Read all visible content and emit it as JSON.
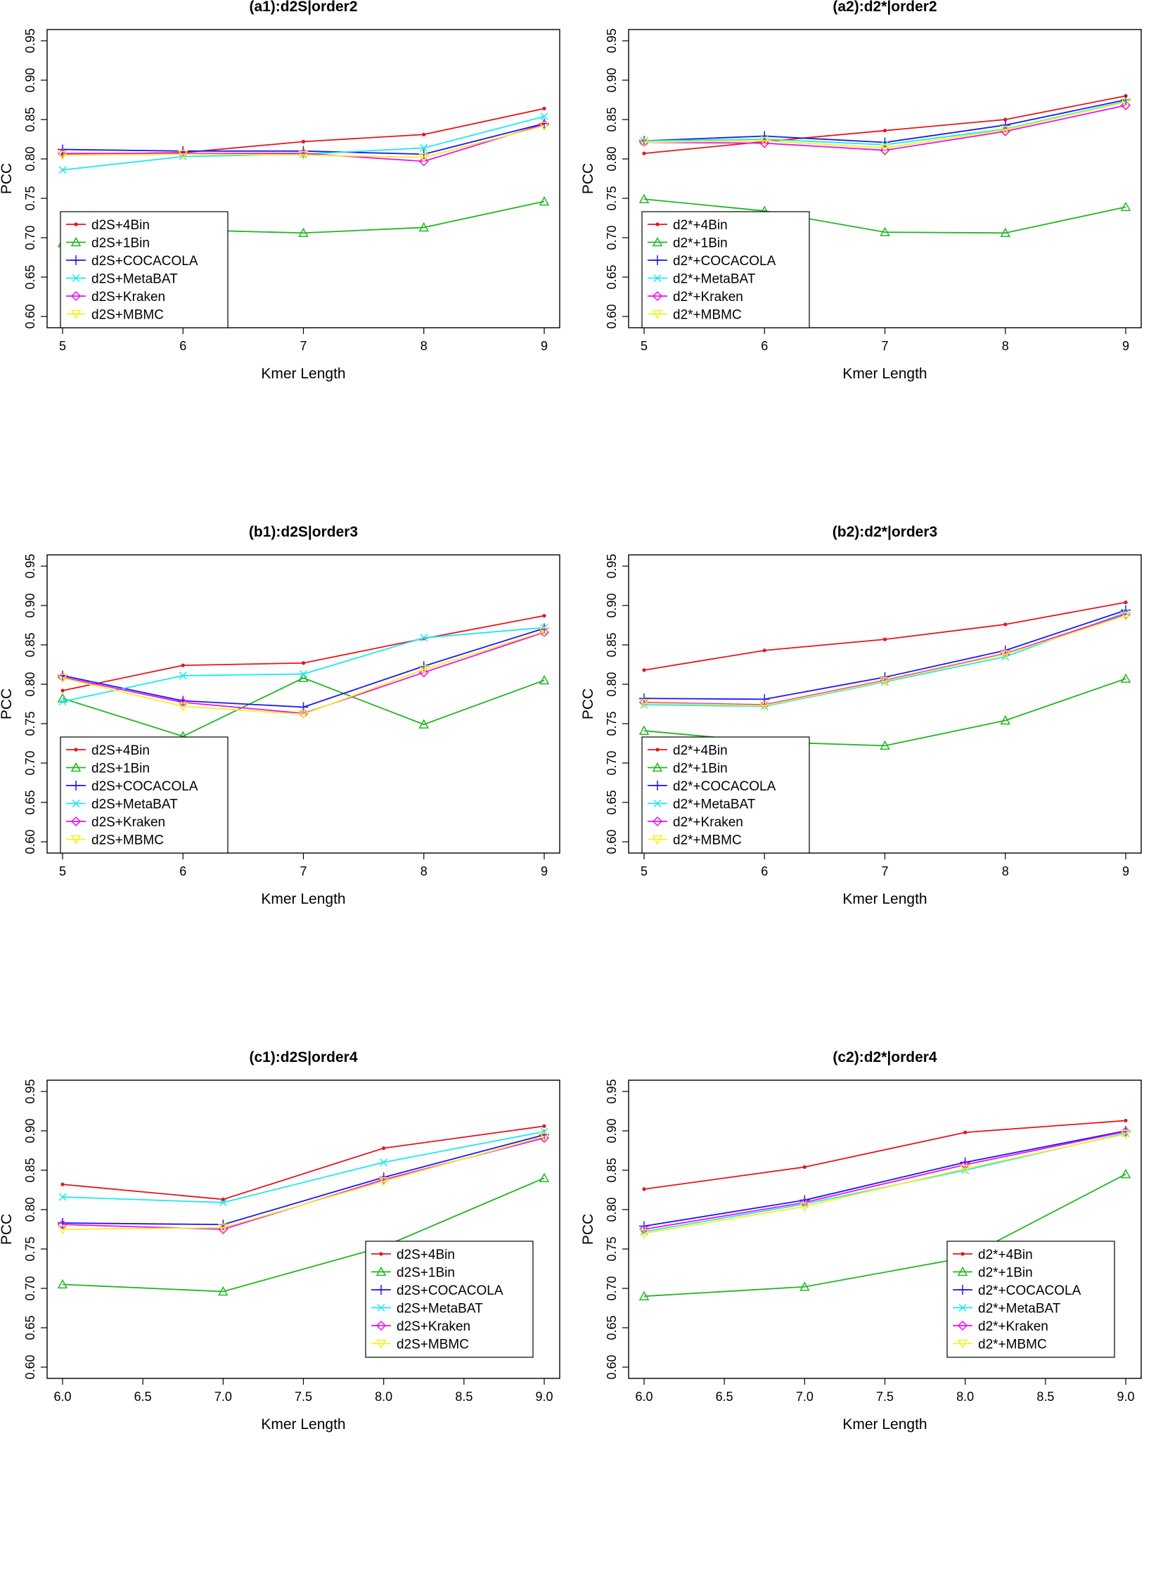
{
  "figure": {
    "colors": {
      "4Bin": "#e8141c",
      "1Bin": "#22b622",
      "COCACOLA": "#1a1aee",
      "MetaBAT": "#1fe8f0",
      "Kraken": "#ee10ee",
      "MBMC": "#f5f020"
    }
  },
  "chart_data": [
    {
      "type": "line",
      "title": "(a1):d2S|order2",
      "xlabel": "Kmer Length",
      "ylabel": "PCC",
      "x": [
        5,
        6,
        7,
        8,
        9
      ],
      "xticks": [
        "5",
        "6",
        "7",
        "8",
        "9"
      ],
      "xlim": [
        5,
        9
      ],
      "ylim": [
        0.6,
        0.95
      ],
      "yticks": [
        "0.60",
        "0.65",
        "0.70",
        "0.75",
        "0.80",
        "0.85",
        "0.90",
        "0.95"
      ],
      "legend_position": "bottom-left",
      "series": [
        {
          "name": "d2S+4Bin",
          "key": "4Bin",
          "values": [
            0.806,
            0.808,
            0.822,
            0.831,
            0.864
          ]
        },
        {
          "name": "d2S+1Bin",
          "key": "1Bin",
          "values": [
            0.693,
            0.71,
            0.706,
            0.713,
            0.746
          ]
        },
        {
          "name": "d2S+COCACOLA",
          "key": "COCACOLA",
          "values": [
            0.812,
            0.81,
            0.81,
            0.806,
            0.845
          ]
        },
        {
          "name": "d2S+MetaBAT",
          "key": "MetaBAT",
          "values": [
            0.786,
            0.803,
            0.806,
            0.814,
            0.854
          ]
        },
        {
          "name": "d2S+Kraken",
          "key": "Kraken",
          "values": [
            0.807,
            0.807,
            0.807,
            0.797,
            0.844
          ]
        },
        {
          "name": "d2S+MBMC",
          "key": "MBMC",
          "values": [
            0.805,
            0.806,
            0.805,
            0.802,
            0.842
          ]
        }
      ]
    },
    {
      "type": "line",
      "title": "(a2):d2*|order2",
      "xlabel": "Kmer Length",
      "ylabel": "PCC",
      "x": [
        5,
        6,
        7,
        8,
        9
      ],
      "xticks": [
        "5",
        "6",
        "7",
        "8",
        "9"
      ],
      "xlim": [
        5,
        9
      ],
      "ylim": [
        0.6,
        0.95
      ],
      "yticks": [
        "0.60",
        "0.65",
        "0.70",
        "0.75",
        "0.80",
        "0.85",
        "0.90",
        "0.95"
      ],
      "legend_position": "bottom-left",
      "series": [
        {
          "name": "d2*+4Bin",
          "key": "4Bin",
          "values": [
            0.807,
            0.822,
            0.836,
            0.85,
            0.88
          ]
        },
        {
          "name": "d2*+1Bin",
          "key": "1Bin",
          "values": [
            0.749,
            0.734,
            0.707,
            0.706,
            0.739
          ]
        },
        {
          "name": "d2*+COCACOLA",
          "key": "COCACOLA",
          "values": [
            0.823,
            0.829,
            0.821,
            0.843,
            0.875
          ]
        },
        {
          "name": "d2*+MetaBAT",
          "key": "MetaBAT",
          "values": [
            0.823,
            0.825,
            0.818,
            0.838,
            0.873
          ]
        },
        {
          "name": "d2*+Kraken",
          "key": "Kraken",
          "values": [
            0.821,
            0.82,
            0.811,
            0.835,
            0.868
          ]
        },
        {
          "name": "d2*+MBMC",
          "key": "MBMC",
          "values": [
            0.821,
            0.823,
            0.814,
            0.837,
            0.872
          ]
        }
      ]
    },
    {
      "type": "line",
      "title": "(b1):d2S|order3",
      "xlabel": "Kmer Length",
      "ylabel": "PCC",
      "x": [
        5,
        6,
        7,
        8,
        9
      ],
      "xticks": [
        "5",
        "6",
        "7",
        "8",
        "9"
      ],
      "xlim": [
        5,
        9
      ],
      "ylim": [
        0.6,
        0.95
      ],
      "yticks": [
        "0.60",
        "0.65",
        "0.70",
        "0.75",
        "0.80",
        "0.85",
        "0.90",
        "0.95"
      ],
      "legend_position": "bottom-left",
      "series": [
        {
          "name": "d2S+4Bin",
          "key": "4Bin",
          "values": [
            0.792,
            0.824,
            0.827,
            0.858,
            0.887
          ]
        },
        {
          "name": "d2S+1Bin",
          "key": "1Bin",
          "values": [
            0.782,
            0.734,
            0.808,
            0.749,
            0.805
          ]
        },
        {
          "name": "d2S+COCACOLA",
          "key": "COCACOLA",
          "values": [
            0.811,
            0.779,
            0.771,
            0.823,
            0.871
          ]
        },
        {
          "name": "d2S+MetaBAT",
          "key": "MetaBAT",
          "values": [
            0.778,
            0.811,
            0.813,
            0.859,
            0.872
          ]
        },
        {
          "name": "d2S+Kraken",
          "key": "Kraken",
          "values": [
            0.809,
            0.777,
            0.763,
            0.815,
            0.866
          ]
        },
        {
          "name": "d2S+MBMC",
          "key": "MBMC",
          "values": [
            0.808,
            0.772,
            0.762,
            0.819,
            0.867
          ]
        }
      ]
    },
    {
      "type": "line",
      "title": "(b2):d2*|order3",
      "xlabel": "Kmer Length",
      "ylabel": "PCC",
      "x": [
        5,
        6,
        7,
        8,
        9
      ],
      "xticks": [
        "5",
        "6",
        "7",
        "8",
        "9"
      ],
      "xlim": [
        5,
        9
      ],
      "ylim": [
        0.6,
        0.95
      ],
      "yticks": [
        "0.60",
        "0.65",
        "0.70",
        "0.75",
        "0.80",
        "0.85",
        "0.90",
        "0.95"
      ],
      "legend_position": "bottom-left",
      "series": [
        {
          "name": "d2*+4Bin",
          "key": "4Bin",
          "values": [
            0.818,
            0.843,
            0.857,
            0.876,
            0.904
          ]
        },
        {
          "name": "d2*+1Bin",
          "key": "1Bin",
          "values": [
            0.741,
            0.727,
            0.722,
            0.754,
            0.807
          ]
        },
        {
          "name": "d2*+COCACOLA",
          "key": "COCACOLA",
          "values": [
            0.782,
            0.781,
            0.809,
            0.843,
            0.894
          ]
        },
        {
          "name": "d2*+MetaBAT",
          "key": "MetaBAT",
          "values": [
            0.774,
            0.772,
            0.803,
            0.835,
            0.891
          ]
        },
        {
          "name": "d2*+Kraken",
          "key": "Kraken",
          "values": [
            0.777,
            0.774,
            0.805,
            0.839,
            0.889
          ]
        },
        {
          "name": "d2*+MBMC",
          "key": "MBMC",
          "values": [
            0.776,
            0.773,
            0.804,
            0.838,
            0.887
          ]
        }
      ]
    },
    {
      "type": "line",
      "title": "(c1):d2S|order4",
      "xlabel": "Kmer Length",
      "ylabel": "PCC",
      "x": [
        6,
        7,
        8,
        9
      ],
      "xticks": [
        "6.0",
        "6.5",
        "7.0",
        "7.5",
        "8.0",
        "8.5",
        "9.0"
      ],
      "xtick_values": [
        6,
        6.5,
        7,
        7.5,
        8,
        8.5,
        9
      ],
      "xlim": [
        6,
        9
      ],
      "ylim": [
        0.6,
        0.95
      ],
      "yticks": [
        "0.60",
        "0.65",
        "0.70",
        "0.75",
        "0.80",
        "0.85",
        "0.90",
        "0.95"
      ],
      "legend_position": "bottom-right",
      "series": [
        {
          "name": "d2S+4Bin",
          "key": "4Bin",
          "values": [
            0.832,
            0.813,
            0.878,
            0.906
          ]
        },
        {
          "name": "d2S+1Bin",
          "key": "1Bin",
          "values": [
            0.705,
            0.696,
            0.753,
            0.84
          ]
        },
        {
          "name": "d2S+COCACOLA",
          "key": "COCACOLA",
          "values": [
            0.783,
            0.781,
            0.841,
            0.895
          ]
        },
        {
          "name": "d2S+MetaBAT",
          "key": "MetaBAT",
          "values": [
            0.816,
            0.809,
            0.86,
            0.899
          ]
        },
        {
          "name": "d2S+Kraken",
          "key": "Kraken",
          "values": [
            0.781,
            0.775,
            0.838,
            0.891
          ]
        },
        {
          "name": "d2S+MBMC",
          "key": "MBMC",
          "values": [
            0.775,
            0.777,
            0.836,
            0.893
          ]
        }
      ]
    },
    {
      "type": "line",
      "title": "(c2):d2*|order4",
      "xlabel": "Kmer Length",
      "ylabel": "PCC",
      "x": [
        6,
        7,
        8,
        9
      ],
      "xticks": [
        "6.0",
        "6.5",
        "7.0",
        "7.5",
        "8.0",
        "8.5",
        "9.0"
      ],
      "xtick_values": [
        6,
        6.5,
        7,
        7.5,
        8,
        8.5,
        9
      ],
      "xlim": [
        6,
        9
      ],
      "ylim": [
        0.6,
        0.95
      ],
      "yticks": [
        "0.60",
        "0.65",
        "0.70",
        "0.75",
        "0.80",
        "0.85",
        "0.90",
        "0.95"
      ],
      "legend_position": "bottom-right",
      "series": [
        {
          "name": "d2*+4Bin",
          "key": "4Bin",
          "values": [
            0.826,
            0.854,
            0.898,
            0.913
          ]
        },
        {
          "name": "d2*+1Bin",
          "key": "1Bin",
          "values": [
            0.69,
            0.702,
            0.739,
            0.845
          ]
        },
        {
          "name": "d2*+COCACOLA",
          "key": "COCACOLA",
          "values": [
            0.779,
            0.812,
            0.86,
            0.9
          ]
        },
        {
          "name": "d2*+MetaBAT",
          "key": "MetaBAT",
          "values": [
            0.772,
            0.807,
            0.85,
            0.897
          ]
        },
        {
          "name": "d2*+Kraken",
          "key": "Kraken",
          "values": [
            0.775,
            0.809,
            0.857,
            0.899
          ]
        },
        {
          "name": "d2*+MBMC",
          "key": "MBMC",
          "values": [
            0.77,
            0.804,
            0.852,
            0.896
          ]
        }
      ]
    }
  ]
}
